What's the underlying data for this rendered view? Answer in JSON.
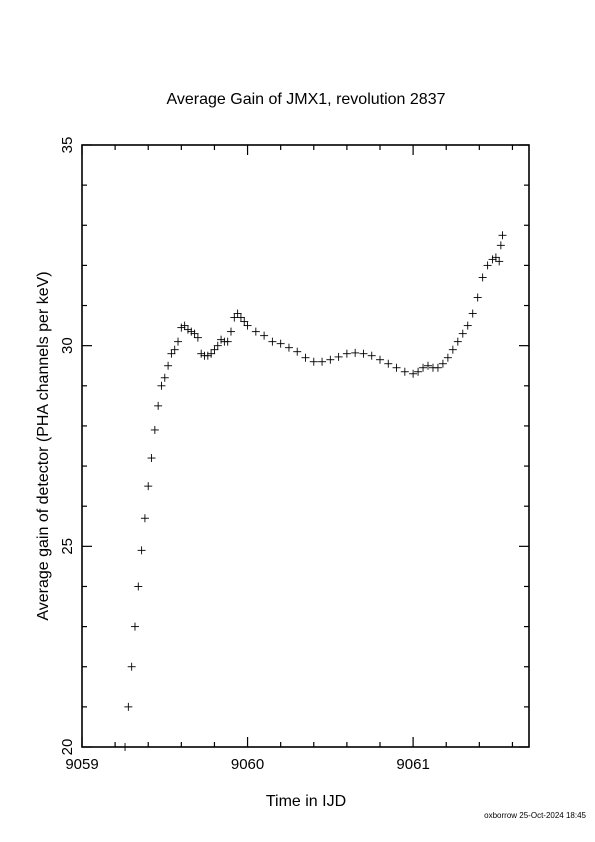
{
  "chart_data": {
    "type": "scatter",
    "title": "Average Gain of JMX1, revolution 2837",
    "xlabel": "Time in IJD",
    "ylabel": "Average gain of detector (PHA channels per keV)",
    "xlim": [
      9059,
      9061.7
    ],
    "ylim": [
      20,
      35
    ],
    "xticks": [
      9059,
      9060,
      9061
    ],
    "yticks": [
      20,
      25,
      30,
      35
    ],
    "x_minor_step": 0.2,
    "y_minor_step": 1,
    "marker": "plus",
    "grid": false,
    "series": [
      {
        "values_xy": [
          [
            9059.26,
            20.0
          ],
          [
            9059.28,
            21.0
          ],
          [
            9059.3,
            22.0
          ],
          [
            9059.32,
            23.0
          ],
          [
            9059.34,
            24.0
          ],
          [
            9059.36,
            24.9
          ],
          [
            9059.38,
            25.7
          ],
          [
            9059.4,
            26.5
          ],
          [
            9059.42,
            27.2
          ],
          [
            9059.44,
            27.9
          ],
          [
            9059.46,
            28.5
          ],
          [
            9059.48,
            29.0
          ],
          [
            9059.5,
            29.2
          ],
          [
            9059.52,
            29.5
          ],
          [
            9059.54,
            29.8
          ],
          [
            9059.56,
            29.9
          ],
          [
            9059.58,
            30.1
          ],
          [
            9059.6,
            30.45
          ],
          [
            9059.62,
            30.5
          ],
          [
            9059.64,
            30.4
          ],
          [
            9059.66,
            30.35
          ],
          [
            9059.68,
            30.3
          ],
          [
            9059.7,
            30.2
          ],
          [
            9059.72,
            29.8
          ],
          [
            9059.74,
            29.75
          ],
          [
            9059.76,
            29.75
          ],
          [
            9059.78,
            29.8
          ],
          [
            9059.8,
            29.9
          ],
          [
            9059.82,
            30.0
          ],
          [
            9059.84,
            30.15
          ],
          [
            9059.86,
            30.1
          ],
          [
            9059.88,
            30.1
          ],
          [
            9059.9,
            30.35
          ],
          [
            9059.92,
            30.7
          ],
          [
            9059.94,
            30.8
          ],
          [
            9059.96,
            30.7
          ],
          [
            9059.98,
            30.6
          ],
          [
            9060.0,
            30.5
          ],
          [
            9060.05,
            30.35
          ],
          [
            9060.1,
            30.25
          ],
          [
            9060.15,
            30.1
          ],
          [
            9060.2,
            30.05
          ],
          [
            9060.25,
            29.95
          ],
          [
            9060.3,
            29.85
          ],
          [
            9060.35,
            29.7
          ],
          [
            9060.4,
            29.6
          ],
          [
            9060.45,
            29.6
          ],
          [
            9060.5,
            29.65
          ],
          [
            9060.55,
            29.72
          ],
          [
            9060.6,
            29.8
          ],
          [
            9060.65,
            29.82
          ],
          [
            9060.7,
            29.8
          ],
          [
            9060.75,
            29.75
          ],
          [
            9060.8,
            29.65
          ],
          [
            9060.85,
            29.55
          ],
          [
            9060.9,
            29.45
          ],
          [
            9060.95,
            29.35
          ],
          [
            9061.0,
            29.3
          ],
          [
            9061.03,
            29.35
          ],
          [
            9061.06,
            29.45
          ],
          [
            9061.09,
            29.5
          ],
          [
            9061.12,
            29.45
          ],
          [
            9061.15,
            29.45
          ],
          [
            9061.18,
            29.55
          ],
          [
            9061.21,
            29.7
          ],
          [
            9061.24,
            29.9
          ],
          [
            9061.27,
            30.1
          ],
          [
            9061.3,
            30.3
          ],
          [
            9061.33,
            30.5
          ],
          [
            9061.36,
            30.8
          ],
          [
            9061.39,
            31.2
          ],
          [
            9061.42,
            31.7
          ],
          [
            9061.45,
            32.0
          ],
          [
            9061.48,
            32.15
          ],
          [
            9061.5,
            32.2
          ],
          [
            9061.52,
            32.1
          ],
          [
            9061.53,
            32.5
          ],
          [
            9061.54,
            32.75
          ]
        ]
      }
    ]
  },
  "footer": {
    "stamp": "oxborrow 25-Oct-2024 18:45"
  }
}
